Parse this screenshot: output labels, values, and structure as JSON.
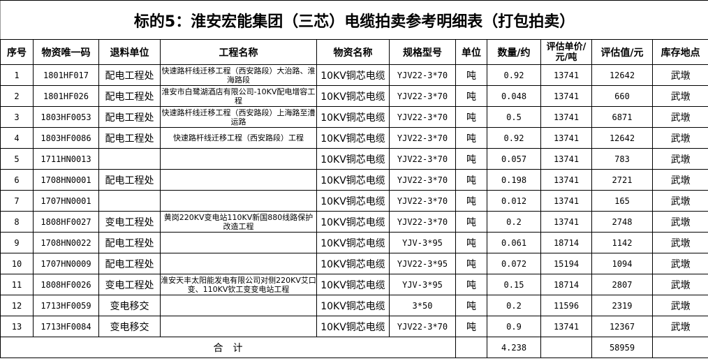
{
  "title": "标的5：淮安宏能集团（三芯）电缆拍卖参考明细表（打包拍卖）",
  "headers": [
    "序号",
    "物资唯一码",
    "退料单位",
    "工程名称",
    "物资名称",
    "规格型号",
    "单位",
    "数量/约",
    "评估单价/元/吨",
    "评估值/元",
    "库存地点"
  ],
  "rows": [
    [
      "1",
      "1801HF017",
      "配电工程处",
      "快速路杆线迁移工程（西安路段）大治路、淮海路段",
      "10KV铜芯电缆",
      "YJV22-3*70",
      "吨",
      "0.92",
      "13741",
      "12642",
      "武墩"
    ],
    [
      "2",
      "1801HF026",
      "配电工程处",
      "淮安市白鹭湖酒店有限公司-10KV配电增容工程",
      "10KV铜芯电缆",
      "YJV22-3*70",
      "吨",
      "0.048",
      "13741",
      "660",
      "武墩"
    ],
    [
      "3",
      "1803HF0053",
      "配电工程处",
      "快速路杆线迁移工程（西安路段）上海路至漕运路",
      "10KV铜芯电缆",
      "YJV22-3*70",
      "吨",
      "0.5",
      "13741",
      "6871",
      "武墩"
    ],
    [
      "4",
      "1803HF0086",
      "配电工程处",
      "快速路杆线迁移工程（西安路段）工程",
      "10KV铜芯电缆",
      "YJV22-3*70",
      "吨",
      "0.92",
      "13741",
      "12642",
      "武墩"
    ],
    [
      "5",
      "1711HN0013",
      "",
      "",
      "10KV铜芯电缆",
      "YJV22-3*70",
      "吨",
      "0.057",
      "13741",
      "783",
      "武墩"
    ],
    [
      "6",
      "1708HN0001",
      "配电工程处",
      "",
      "10KV铜芯电缆",
      "YJV22-3*70",
      "吨",
      "0.198",
      "13741",
      "2721",
      "武墩"
    ],
    [
      "7",
      "1707HN0001",
      "",
      "",
      "10KV铜芯电缆",
      "YJV22-3*70",
      "吨",
      "0.012",
      "13741",
      "165",
      "武墩"
    ],
    [
      "8",
      "1808HF0027",
      "变电工程处",
      "黄岗220KV变电站110KV新国880线路保护改造工程",
      "10KV铜芯电缆",
      "YJV22-3*70",
      "吨",
      "0.2",
      "13741",
      "2748",
      "武墩"
    ],
    [
      "9",
      "1708HN0022",
      "配电工程处",
      "",
      "10KV铜芯电缆",
      "YJV-3*95",
      "吨",
      "0.061",
      "18714",
      "1142",
      "武墩"
    ],
    [
      "10",
      "1707HN0009",
      "配电工程处",
      "",
      "10KV铜芯电缆",
      "YJV22-3*95",
      "吨",
      "0.072",
      "15194",
      "1094",
      "武墩"
    ],
    [
      "11",
      "1808HF0026",
      "变电工程处",
      "淮安天丰太阳能发电有限公司对侧220KV艾口变、110KV钦工变变电站工程",
      "10KV铜芯电缆",
      "YJV-3*95",
      "吨",
      "0.15",
      "18714",
      "2807",
      "武墩"
    ],
    [
      "12",
      "1713HF0059",
      "变电移交",
      "",
      "10KV铜芯电缆",
      "3*50",
      "吨",
      "0.2",
      "11596",
      "2319",
      "武墩"
    ],
    [
      "13",
      "1713HF0084",
      "变电移交",
      "",
      "10KV铜芯电缆",
      "YJV22-3*70",
      "吨",
      "0.9",
      "13741",
      "12367",
      "武墩"
    ]
  ],
  "total": {
    "label": "合　计",
    "quantity": "4.238",
    "value": "58959"
  }
}
